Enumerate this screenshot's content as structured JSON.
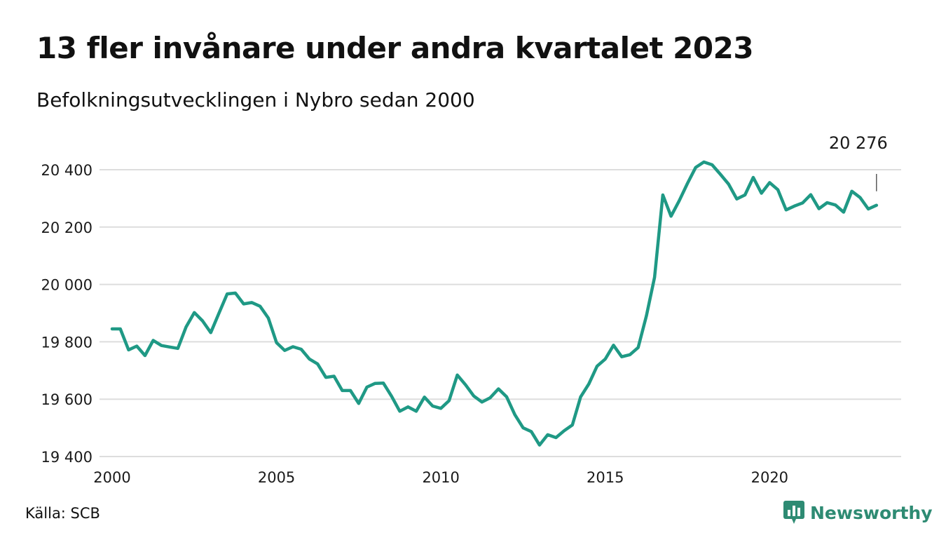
{
  "title": "13 fler invånare under andra kvartalet 2023",
  "subtitle": "Befolkningsutvecklingen i Nybro sedan 2000",
  "source": "Källa: SCB",
  "brand": {
    "name": "Newsworthy",
    "icon": "newsworthy-logo-icon",
    "color": "#2e8b73"
  },
  "chart_data": {
    "type": "line",
    "line_color": "#1f9985",
    "grid": true,
    "x_ticks": [
      2000,
      2005,
      2010,
      2015,
      2020
    ],
    "x_tick_labels": [
      "2000",
      "2005",
      "2010",
      "2015",
      "2020"
    ],
    "xlim": [
      2000,
      2024
    ],
    "y_ticks": [
      19400,
      19600,
      19800,
      20000,
      20200,
      20400
    ],
    "y_tick_labels": [
      "19 400",
      "19 600",
      "19 800",
      "20 000",
      "20 200",
      "20 400"
    ],
    "ylim": [
      19400,
      20400
    ],
    "last_value_label": "20 276",
    "x_start": 2000.0,
    "x_step": 0.25,
    "values": [
      19845,
      19845,
      19772,
      19785,
      19752,
      19805,
      19787,
      19782,
      19777,
      19852,
      19902,
      19873,
      19832,
      19900,
      19967,
      19970,
      19932,
      19937,
      19924,
      19883,
      19797,
      19770,
      19783,
      19774,
      19740,
      19723,
      19676,
      19680,
      19630,
      19630,
      19585,
      19642,
      19655,
      19656,
      19610,
      19558,
      19573,
      19558,
      19607,
      19576,
      19568,
      19595,
      19684,
      19650,
      19611,
      19590,
      19605,
      19636,
      19608,
      19546,
      19500,
      19487,
      19440,
      19476,
      19466,
      19490,
      19510,
      19608,
      19653,
      19715,
      19740,
      19788,
      19748,
      19755,
      19780,
      19890,
      20025,
      20312,
      20238,
      20292,
      20352,
      20408,
      20427,
      20417,
      20384,
      20350,
      20298,
      20312,
      20373,
      20318,
      20355,
      20330,
      20260,
      20273,
      20284,
      20313,
      20264,
      20285,
      20277,
      20252,
      20325,
      20303,
      20263,
      20276
    ]
  }
}
